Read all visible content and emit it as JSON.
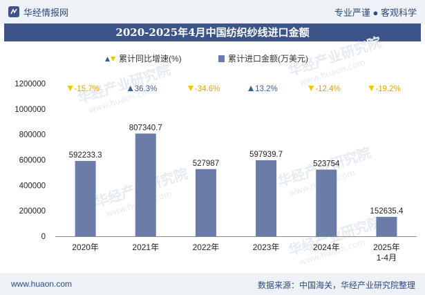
{
  "header": {
    "brand": "华经情报网",
    "slogan": "专业严谨 ● 客观科学"
  },
  "title": "2020-2025年4月中国纺织纱线进口金额",
  "footer": {
    "site": "www.huaon.com",
    "source": "数据来源：中国海关，华经产业研究院整理"
  },
  "watermark": "华经产业研究院",
  "watermark_url": "www.huaon.com",
  "colors": {
    "bar": "#6b7ca8",
    "up": "#3c5f8c",
    "down": "#f5c400",
    "title_bg": "#3c5488"
  },
  "chart_data": {
    "type": "bar",
    "categories": [
      "2020年",
      "2021年",
      "2022年",
      "2023年",
      "2024年",
      "2025年\n1-4月"
    ],
    "series": [
      {
        "name": "累计进口金额(万美元)",
        "values": [
          592233.3,
          807340.7,
          527987,
          597939.7,
          523754,
          152635.4
        ],
        "labels": [
          "592233.3",
          "807340.7",
          "527987",
          "597939.7",
          "523754",
          "152635.4"
        ]
      },
      {
        "name": "累计同比增速(%)",
        "values": [
          -15.7,
          36.3,
          -34.6,
          13.2,
          -12.4,
          -19.2
        ],
        "labels": [
          "-15.7%",
          "36.3%",
          "-34.6%",
          "13.2%",
          "-12.4%",
          "-19.2%"
        ]
      }
    ],
    "yticks": [
      "0",
      "200000",
      "400000",
      "600000",
      "800000",
      "1000000",
      "1200000"
    ],
    "ylim": [
      0,
      1200000
    ],
    "legend_position": "top"
  }
}
